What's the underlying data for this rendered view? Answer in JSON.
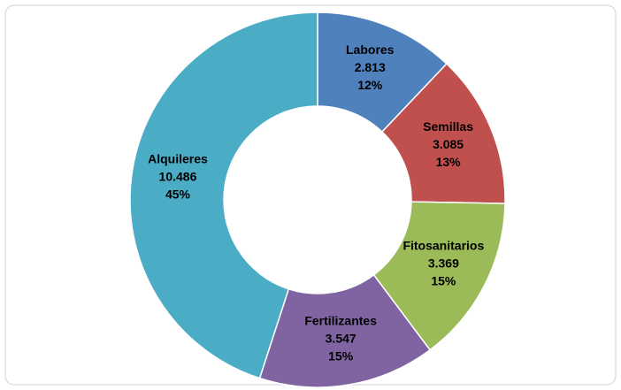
{
  "chart_data": {
    "type": "donut",
    "categories": [
      "Labores",
      "Semillas",
      "Fitosanitarios",
      "Fertilizantes",
      "Alquileres"
    ],
    "values": [
      2813,
      3085,
      3369,
      3547,
      10486
    ],
    "value_labels": [
      "2.813",
      "3.085",
      "3.369",
      "3.547",
      "10.486"
    ],
    "percent_labels": [
      "12%",
      "13%",
      "15%",
      "15%",
      "45%"
    ],
    "colors": [
      "#4f81bd",
      "#c0504d",
      "#9bbb59",
      "#8064a2",
      "#4bacc6"
    ]
  }
}
